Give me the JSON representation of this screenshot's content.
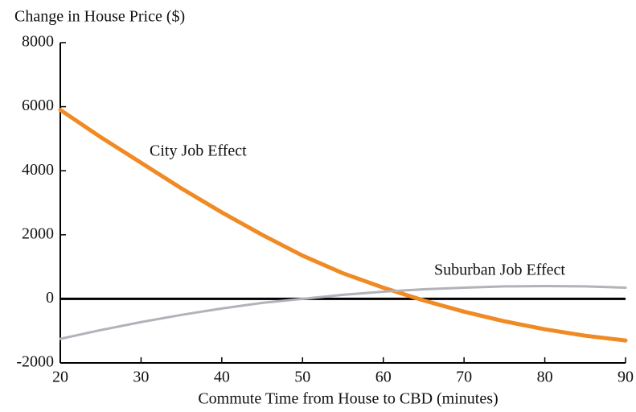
{
  "chart_data": {
    "type": "line",
    "y_label": "Change in House Price ($)",
    "x_label": "Commute Time from House to CBD (minutes)",
    "x": [
      20,
      25,
      30,
      35,
      40,
      45,
      50,
      55,
      60,
      65,
      70,
      75,
      80,
      85,
      90
    ],
    "series": [
      {
        "name": "City Job Effect",
        "color": "#f08a24",
        "values": [
          5900,
          5050,
          4250,
          3450,
          2700,
          2000,
          1350,
          800,
          350,
          -50,
          -400,
          -700,
          -950,
          -1150,
          -1300
        ]
      },
      {
        "name": "Suburban Job Effect",
        "color": "#b3b2ba",
        "values": [
          -1250,
          -975,
          -725,
          -500,
          -300,
          -125,
          0,
          125,
          225,
          300,
          350,
          390,
          400,
          390,
          350
        ]
      }
    ],
    "xlim": [
      20,
      90
    ],
    "xticks": [
      20,
      30,
      40,
      50,
      60,
      70,
      80,
      90
    ],
    "ylim": [
      -2000,
      8000
    ],
    "yticks": [
      -2000,
      0,
      2000,
      4000,
      6000,
      8000
    ],
    "hline": 0
  }
}
